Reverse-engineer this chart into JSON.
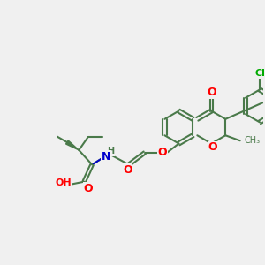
{
  "bg_color": "#f0f0f0",
  "bond_color": "#4a7a4a",
  "bond_lw": 1.5,
  "atom_colors": {
    "O": "#ff0000",
    "N": "#0000cc",
    "Cl": "#00aa00",
    "H": "#4a7a4a",
    "C": "#4a7a4a"
  },
  "font_size": 8
}
